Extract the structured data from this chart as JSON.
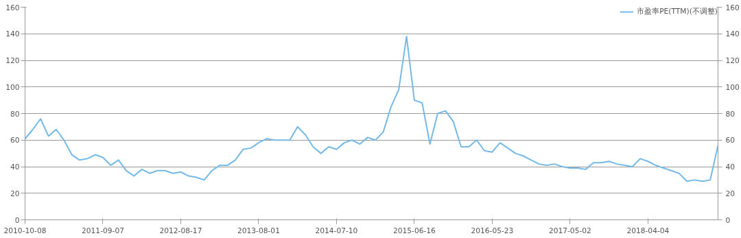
{
  "chart_data": {
    "type": "line",
    "categories": [
      "2010-10-08",
      null,
      null,
      null,
      null,
      null,
      null,
      null,
      null,
      null,
      "2011-09-07",
      null,
      null,
      null,
      null,
      null,
      null,
      null,
      null,
      null,
      "2012-08-17",
      null,
      null,
      null,
      null,
      null,
      null,
      null,
      null,
      null,
      "2013-08-01",
      null,
      null,
      null,
      null,
      null,
      null,
      null,
      null,
      null,
      "2014-07-10",
      null,
      null,
      null,
      null,
      null,
      null,
      null,
      null,
      null,
      "2015-06-16",
      null,
      null,
      null,
      null,
      null,
      null,
      null,
      null,
      null,
      "2016-05-23",
      null,
      null,
      null,
      null,
      null,
      null,
      null,
      null,
      null,
      "2017-05-02",
      null,
      null,
      null,
      null,
      null,
      null,
      null,
      null,
      null,
      "2018-04-04",
      null,
      null,
      null,
      null,
      null,
      null,
      null,
      null,
      null
    ],
    "series": [
      {
        "name": "市盈率PE(TTM)(不调整)",
        "color": "#74b9e8",
        "values": [
          61,
          68,
          76,
          63,
          68,
          60,
          49,
          45,
          46,
          49,
          47,
          41,
          45,
          37,
          33,
          38,
          35,
          37,
          37,
          35,
          36,
          33,
          32,
          30,
          37,
          41,
          41,
          45,
          53,
          54,
          58,
          61,
          60,
          60,
          60,
          70,
          64,
          55,
          50,
          55,
          53,
          58,
          60,
          57,
          62,
          60,
          66,
          85,
          98,
          138,
          90,
          88,
          57,
          80,
          82,
          74,
          55,
          55,
          60,
          52,
          51,
          58,
          54,
          50,
          48,
          45,
          42,
          41,
          42,
          40,
          39,
          39,
          38,
          43,
          43,
          44,
          42,
          41,
          40,
          46,
          44,
          41,
          39,
          37,
          35,
          29,
          30,
          29,
          30,
          56
        ]
      }
    ],
    "ylim": [
      0,
      160
    ],
    "yticks": [
      0,
      20,
      40,
      60,
      80,
      100,
      120,
      140,
      160
    ],
    "y2lim": [
      0,
      160
    ],
    "y2ticks": [
      0,
      20,
      40,
      60,
      80,
      100,
      120,
      140,
      160
    ],
    "grid": "y",
    "legend": "top right",
    "marker": "none",
    "line_style": "solid"
  }
}
